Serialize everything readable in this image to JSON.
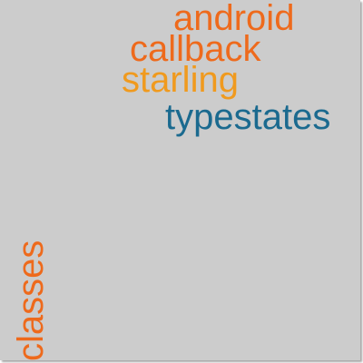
{
  "words": [
    {
      "text": "android",
      "color": "#ee6a1c"
    },
    {
      "text": "callback",
      "color": "#ee6a1c"
    },
    {
      "text": "starling",
      "color": "#f09a1e"
    },
    {
      "text": "typestates",
      "color": "#1b6a8f"
    },
    {
      "text": "classes",
      "color": "#ee6a1c"
    }
  ]
}
